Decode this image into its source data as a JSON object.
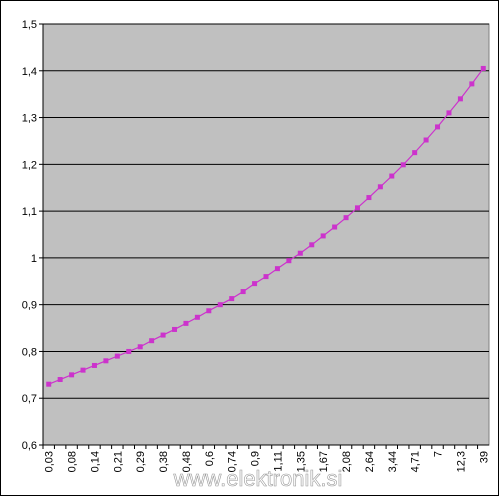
{
  "chart_data": {
    "type": "line",
    "categories": [
      "0,03",
      null,
      "0,08",
      null,
      "0,14",
      null,
      "0,21",
      null,
      "0,29",
      null,
      "0,38",
      null,
      "0,48",
      null,
      "0,6",
      null,
      "0,74",
      null,
      "0,9",
      null,
      "1,11",
      null,
      "1,35",
      null,
      "1,67",
      null,
      "2,08",
      null,
      "2,64",
      null,
      "3,44",
      null,
      "4,71",
      null,
      "7",
      null,
      "12,3",
      null,
      "39"
    ],
    "series": [
      {
        "color": "#cc33cc",
        "values": [
          0.73,
          0.74,
          0.75,
          0.76,
          0.77,
          0.78,
          0.79,
          0.8,
          0.81,
          0.823,
          0.835,
          0.847,
          0.86,
          0.873,
          0.887,
          0.9,
          0.913,
          0.928,
          0.945,
          0.96,
          0.977,
          0.994,
          1.01,
          1.028,
          1.047,
          1.066,
          1.086,
          1.107,
          1.129,
          1.152,
          1.175,
          1.199,
          1.225,
          1.252,
          1.28,
          1.31,
          1.34,
          1.372,
          1.405
        ]
      }
    ],
    "ylim": [
      0.6,
      1.5
    ],
    "yticks": [
      {
        "value": 0.6,
        "label": "0,6"
      },
      {
        "value": 0.7,
        "label": "0,7"
      },
      {
        "value": 0.8,
        "label": "0,8"
      },
      {
        "value": 0.9,
        "label": "0,9"
      },
      1,
      {
        "value": 1.1,
        "label": "1,1"
      },
      {
        "value": 1.2,
        "label": "1,2"
      },
      {
        "value": 1.3,
        "label": "1,3"
      },
      {
        "value": 1.4,
        "label": "1,4"
      },
      {
        "value": 1.5,
        "label": "1,5"
      }
    ],
    "grid": true,
    "plot_background": "#c0c0c0",
    "watermark": "www.elektronik.si"
  }
}
